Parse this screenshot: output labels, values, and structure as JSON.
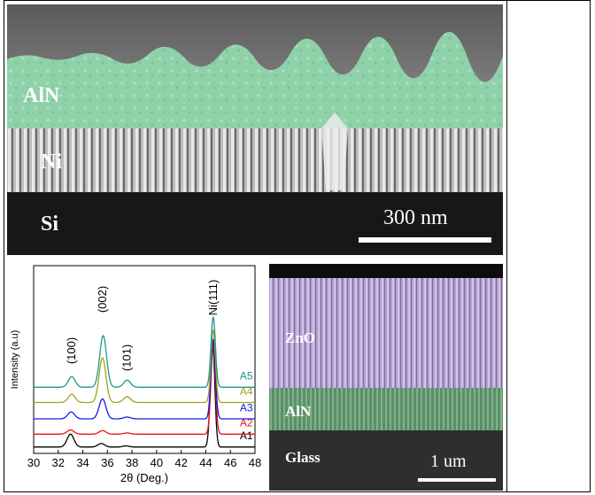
{
  "panels": {
    "top": {
      "labels": {
        "layer1": "AlN",
        "layer2": "Ni",
        "substrate": "Si"
      },
      "scale_bar": "300 nm"
    },
    "bottom_right": {
      "labels": {
        "layer1": "ZnO",
        "layer2": "AlN",
        "substrate": "Glass"
      },
      "scale_bar": "1 um"
    }
  },
  "chart_data": {
    "type": "line",
    "xlabel": "2θ (Deg.)",
    "ylabel": "Intensity (a.u)",
    "xlim": [
      30,
      48
    ],
    "x_ticks": [
      "30",
      "32",
      "34",
      "36",
      "38",
      "40",
      "42",
      "44",
      "46",
      "48"
    ],
    "peak_labels": [
      {
        "text": "(100)",
        "x": 33.1
      },
      {
        "text": "(002)",
        "x": 35.6
      },
      {
        "text": "(101)",
        "x": 37.6
      },
      {
        "text": "Ni(111)",
        "x": 44.6
      }
    ],
    "series": [
      {
        "name": "A1",
        "color": "#000000",
        "offset": 0.0,
        "peaks": [
          [
            33.0,
            0.55
          ],
          [
            35.5,
            0.15
          ],
          [
            37.5,
            0.05
          ],
          [
            44.55,
            4.5
          ]
        ]
      },
      {
        "name": "A2",
        "color": "#e8101a",
        "offset": 0.55,
        "peaks": [
          [
            33.0,
            0.18
          ],
          [
            35.6,
            0.15
          ],
          [
            37.6,
            0.05
          ],
          [
            44.6,
            3.8
          ]
        ]
      },
      {
        "name": "A3",
        "color": "#1a1ae8",
        "offset": 1.2,
        "peaks": [
          [
            33.05,
            0.3
          ],
          [
            35.6,
            0.85
          ],
          [
            37.6,
            0.08
          ],
          [
            44.6,
            3.4
          ]
        ]
      },
      {
        "name": "A4",
        "color": "#a6a21a",
        "offset": 1.9,
        "peaks": [
          [
            33.1,
            0.35
          ],
          [
            35.6,
            1.9
          ],
          [
            37.6,
            0.25
          ],
          [
            44.6,
            3.1
          ]
        ]
      },
      {
        "name": "A5",
        "color": "#1a9a8a",
        "offset": 2.55,
        "peaks": [
          [
            33.1,
            0.45
          ],
          [
            35.65,
            2.2
          ],
          [
            37.6,
            0.3
          ],
          [
            44.6,
            3.0
          ]
        ]
      }
    ]
  }
}
